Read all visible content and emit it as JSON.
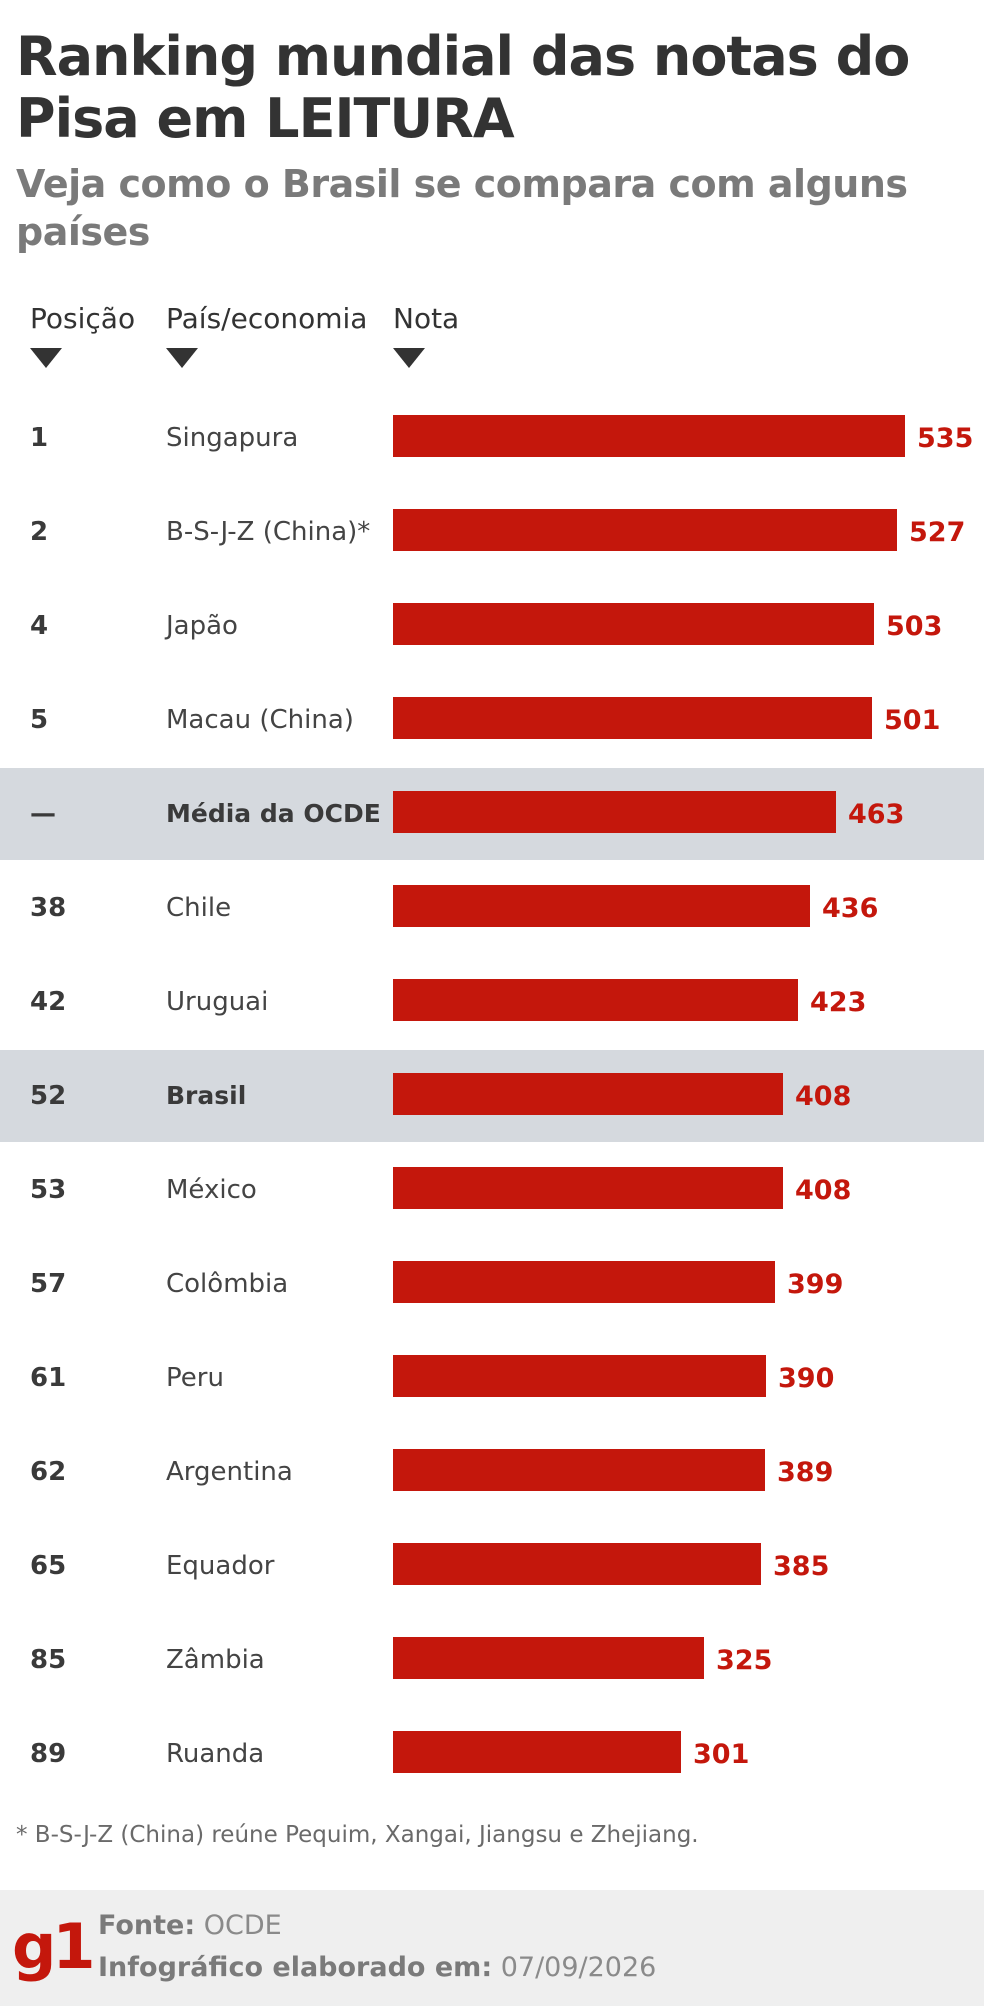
{
  "header": {
    "title": "Ranking mundial das notas do Pisa em LEITURA",
    "subtitle": "Veja como o Brasil se compara com alguns países"
  },
  "columns": {
    "position": "Posição",
    "country": "País/economia",
    "score": "Nota"
  },
  "highlight_color": "#d5d9de",
  "bar_color": "#c4170c",
  "chart_data": {
    "type": "bar",
    "orientation": "horizontal",
    "title": "Ranking mundial das notas do Pisa em LEITURA",
    "categories": [
      "Singapura",
      "B-S-J-Z (China)*",
      "Japão",
      "Macau (China)",
      "Média da OCDE",
      "Chile",
      "Uruguai",
      "Brasil",
      "México",
      "Colômbia",
      "Peru",
      "Argentina",
      "Equador",
      "Zâmbia",
      "Ruanda"
    ],
    "positions": [
      "1",
      "2",
      "4",
      "5",
      "—",
      "38",
      "42",
      "52",
      "53",
      "57",
      "61",
      "62",
      "65",
      "85",
      "89"
    ],
    "values": [
      535,
      527,
      503,
      501,
      463,
      436,
      423,
      408,
      408,
      399,
      390,
      389,
      385,
      325,
      301
    ],
    "highlighted": [
      "Média da OCDE",
      "Brasil"
    ],
    "xlim": [
      0,
      535
    ]
  },
  "footnote": "* B-S-J-Z (China) reúne Pequim, Xangai, Jiangsu e Zhejiang.",
  "footer": {
    "logo": "g1",
    "source_label": "Fonte:",
    "source_value": "OCDE",
    "made_label": "Infográfico elaborado em:",
    "made_value": "07/09/2026"
  }
}
